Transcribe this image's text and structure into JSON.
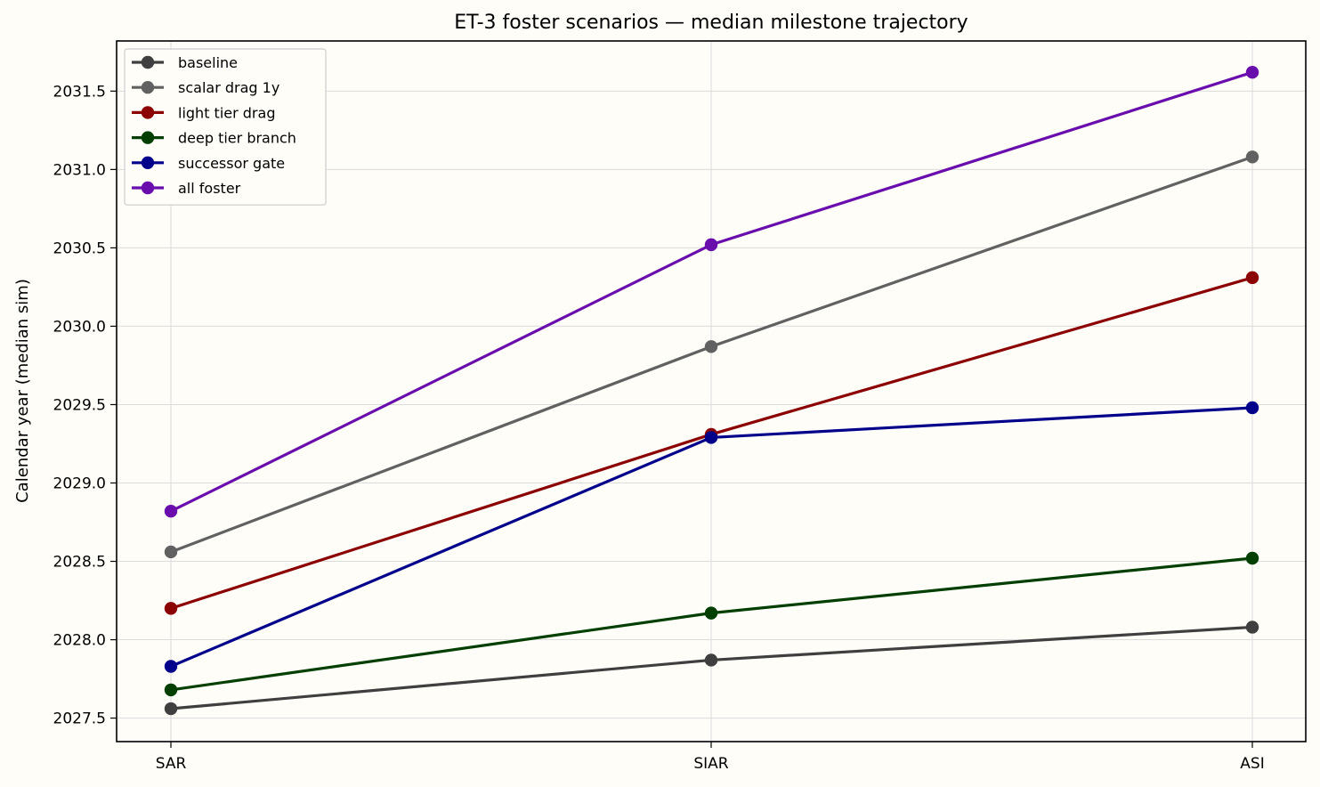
{
  "chart_data": {
    "type": "line",
    "title": "ET-3 foster scenarios — median milestone trajectory",
    "xlabel": "",
    "ylabel": "Calendar year (median sim)",
    "categories": [
      "SAR",
      "SIAR",
      "ASI"
    ],
    "ylim": [
      2027.35,
      2031.82
    ],
    "yticks": [
      2027.5,
      2028.0,
      2028.5,
      2029.0,
      2029.5,
      2030.0,
      2030.5,
      2031.0,
      2031.5
    ],
    "ytick_labels": [
      "2027.5",
      "2028.0",
      "2028.5",
      "2029.0",
      "2029.5",
      "2030.0",
      "2030.5",
      "2031.0",
      "2031.5"
    ],
    "grid": true,
    "legend_position": "top-left",
    "series": [
      {
        "name": "baseline",
        "color": "#3f3f3f",
        "values": [
          2027.56,
          2027.87,
          2028.08
        ]
      },
      {
        "name": "scalar drag 1y",
        "color": "#616161",
        "values": [
          2028.56,
          2029.87,
          2031.08
        ]
      },
      {
        "name": "light tier drag",
        "color": "#8b0000",
        "values": [
          2028.2,
          2029.31,
          2030.31
        ]
      },
      {
        "name": "deep tier branch",
        "color": "#003f00",
        "values": [
          2027.68,
          2028.17,
          2028.52
        ]
      },
      {
        "name": "successor gate",
        "color": "#00008b",
        "values": [
          2027.83,
          2029.29,
          2029.48
        ]
      },
      {
        "name": "all foster",
        "color": "#6a0dad",
        "values": [
          2028.82,
          2030.52,
          2031.62
        ]
      }
    ]
  }
}
